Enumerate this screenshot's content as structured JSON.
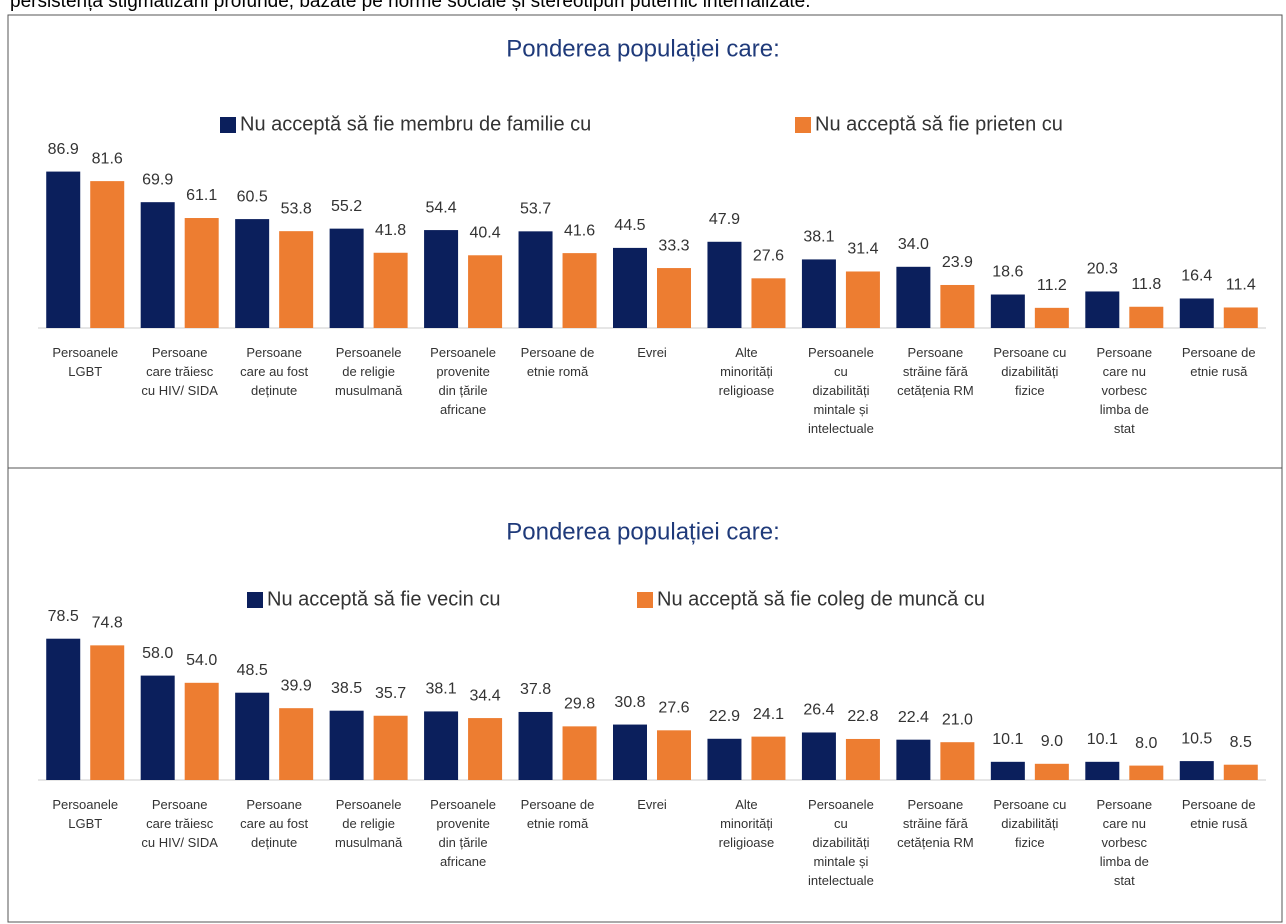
{
  "intro_text": "persistența stigmatizării profunde, bazate pe norme sociale și stereotipuri puternic internalizate.",
  "chart_data": [
    {
      "type": "bar",
      "title": "Ponderea populației care:",
      "categories": [
        "Persoanele LGBT",
        "Persoane care trăiesc cu HIV/ SIDA",
        "Persoane care au fost deținute",
        "Persoanele de religie musulmană",
        "Persoanele provenite din țările africane",
        "Persoane de etnie romă",
        "Evrei",
        "Alte minorități religioase",
        "Persoanele cu dizabilități mintale și intelectuale",
        "Persoane străine fără cetățenia RM",
        "Persoane cu dizabilități fizice",
        "Persoane care nu vorbesc limba de stat",
        "Persoane de etnie rusă"
      ],
      "series": [
        {
          "name": "Nu acceptă să fie membru de familie cu",
          "color": "#0b1f5c",
          "values": [
            86.9,
            69.9,
            60.5,
            55.2,
            54.4,
            53.7,
            44.5,
            47.9,
            38.1,
            34.0,
            18.6,
            20.3,
            16.4
          ],
          "value_labels": [
            "86.9",
            "69.9",
            "60.5",
            "55.2",
            "54.4",
            "53.7",
            "44.5",
            "47.9",
            "38.1",
            "34.0",
            "18.6",
            "20.3",
            "16.4"
          ]
        },
        {
          "name": "Nu acceptă să fie prieten cu",
          "color": "#ed7d31",
          "values": [
            81.6,
            61.1,
            53.8,
            41.8,
            40.4,
            41.6,
            33.3,
            27.6,
            31.4,
            23.9,
            11.2,
            11.8,
            11.4
          ],
          "value_labels": [
            "81.6",
            "61.1",
            "53.8",
            "41.8",
            "40.4",
            "41.6",
            "33.3",
            "27.6",
            "31.4",
            "23.9",
            "11.2",
            "11.8",
            "11.4"
          ]
        }
      ]
    },
    {
      "type": "bar",
      "title": "Ponderea populației care:",
      "categories": [
        "Persoanele LGBT",
        "Persoane care trăiesc cu HIV/ SIDA",
        "Persoane care au fost deținute",
        "Persoanele de religie musulmană",
        "Persoanele provenite din țările africane",
        "Persoane de etnie romă",
        "Evrei",
        "Alte minorități religioase",
        "Persoanele cu dizabilități mintale și intelectuale",
        "Persoane străine fără cetățenia RM",
        "Persoane cu dizabilități fizice",
        "Persoane care nu vorbesc limba de stat",
        "Persoane de etnie rusă"
      ],
      "series": [
        {
          "name": "Nu acceptă să fie vecin cu",
          "color": "#0b1f5c",
          "values": [
            78.5,
            58.0,
            48.5,
            38.5,
            38.1,
            37.8,
            30.8,
            22.9,
            26.4,
            22.4,
            10.1,
            10.1,
            10.5
          ],
          "value_labels": [
            "78.5",
            "58.0",
            "48.5",
            "38.5",
            "38.1",
            "37.8",
            "30.8",
            "22.9",
            "26.4",
            "22.4",
            "10.1",
            "10.1",
            "10.5"
          ]
        },
        {
          "name": "Nu acceptă să fie coleg de muncă cu",
          "color": "#ed7d31",
          "values": [
            74.8,
            54.0,
            39.9,
            35.7,
            34.4,
            29.8,
            27.6,
            24.1,
            22.8,
            21.0,
            9.0,
            8.0,
            8.5
          ],
          "value_labels": [
            "74.8",
            "54.0",
            "39.9",
            "35.7",
            "34.4",
            "29.8",
            "27.6",
            "24.1",
            "22.8",
            "21.0",
            "9.0",
            "8.0",
            "8.5"
          ]
        }
      ]
    }
  ]
}
